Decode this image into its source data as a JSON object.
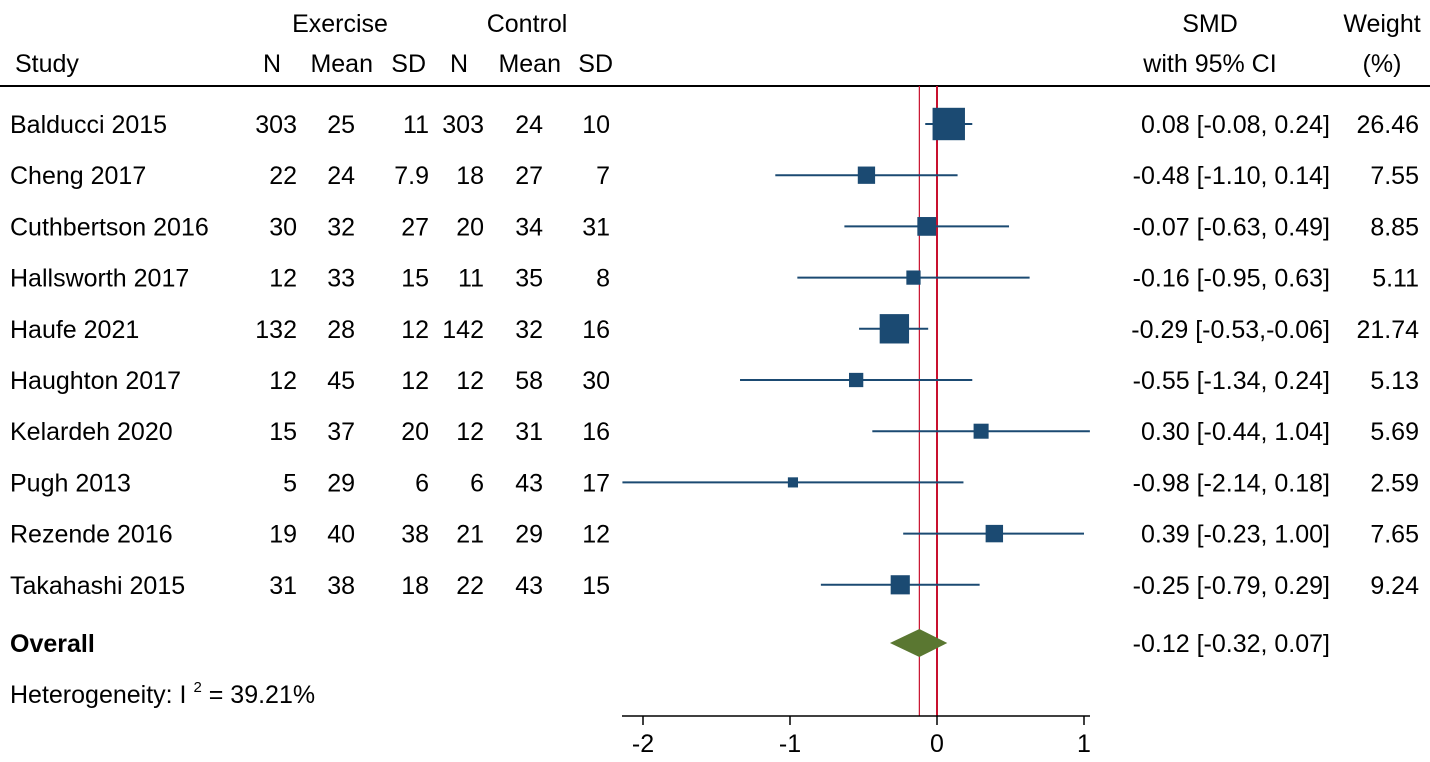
{
  "chart_data": {
    "type": "forest",
    "header": {
      "group1": "Exercise",
      "group2": "Control",
      "study": "Study",
      "n": "N",
      "mean": "Mean",
      "sd": "SD",
      "smd_line1": "SMD",
      "smd_line2": "with 95% CI",
      "weight_line1": "Weight",
      "weight_line2": "(%)"
    },
    "studies": [
      {
        "label": "Balducci 2015",
        "ex_n": "303",
        "ex_mean": "25",
        "ex_sd": "11",
        "ct_n": "303",
        "ct_mean": "24",
        "ct_sd": "10",
        "smd": 0.08,
        "lo": -0.08,
        "hi": 0.24,
        "ci_text": "0.08 [-0.08,  0.24]",
        "weight": 26.46,
        "weight_text": "26.46"
      },
      {
        "label": "Cheng 2017",
        "ex_n": "22",
        "ex_mean": "24",
        "ex_sd": "7.9",
        "ct_n": "18",
        "ct_mean": "27",
        "ct_sd": "7",
        "smd": -0.48,
        "lo": -1.1,
        "hi": 0.14,
        "ci_text": "-0.48 [-1.10,  0.14]",
        "weight": 7.55,
        "weight_text": "7.55"
      },
      {
        "label": "Cuthbertson 2016",
        "ex_n": "30",
        "ex_mean": "32",
        "ex_sd": "27",
        "ct_n": "20",
        "ct_mean": "34",
        "ct_sd": "31",
        "smd": -0.07,
        "lo": -0.63,
        "hi": 0.49,
        "ci_text": "-0.07 [-0.63,  0.49]",
        "weight": 8.85,
        "weight_text": "8.85"
      },
      {
        "label": "Hallsworth 2017",
        "ex_n": "12",
        "ex_mean": "33",
        "ex_sd": "15",
        "ct_n": "11",
        "ct_mean": "35",
        "ct_sd": "8",
        "smd": -0.16,
        "lo": -0.95,
        "hi": 0.63,
        "ci_text": "-0.16 [-0.95,  0.63]",
        "weight": 5.11,
        "weight_text": "5.11"
      },
      {
        "label": "Haufe 2021",
        "ex_n": "132",
        "ex_mean": "28",
        "ex_sd": "12",
        "ct_n": "142",
        "ct_mean": "32",
        "ct_sd": "16",
        "smd": -0.29,
        "lo": -0.53,
        "hi": -0.06,
        "ci_text": "-0.29 [-0.53,-0.06]",
        "weight": 21.74,
        "weight_text": "21.74"
      },
      {
        "label": "Haughton 2017",
        "ex_n": "12",
        "ex_mean": "45",
        "ex_sd": "12",
        "ct_n": "12",
        "ct_mean": "58",
        "ct_sd": "30",
        "smd": -0.55,
        "lo": -1.34,
        "hi": 0.24,
        "ci_text": "-0.55 [-1.34,  0.24]",
        "weight": 5.13,
        "weight_text": "5.13"
      },
      {
        "label": "Kelardeh 2020",
        "ex_n": "15",
        "ex_mean": "37",
        "ex_sd": "20",
        "ct_n": "12",
        "ct_mean": "31",
        "ct_sd": "16",
        "smd": 0.3,
        "lo": -0.44,
        "hi": 1.04,
        "ci_text": "0.30 [-0.44,  1.04]",
        "weight": 5.69,
        "weight_text": "5.69"
      },
      {
        "label": "Pugh 2013",
        "ex_n": "5",
        "ex_mean": "29",
        "ex_sd": "6",
        "ct_n": "6",
        "ct_mean": "43",
        "ct_sd": "17",
        "smd": -0.98,
        "lo": -2.14,
        "hi": 0.18,
        "ci_text": "-0.98 [-2.14,  0.18]",
        "weight": 2.59,
        "weight_text": "2.59"
      },
      {
        "label": "Rezende 2016",
        "ex_n": "19",
        "ex_mean": "40",
        "ex_sd": "38",
        "ct_n": "21",
        "ct_mean": "29",
        "ct_sd": "12",
        "smd": 0.39,
        "lo": -0.23,
        "hi": 1.0,
        "ci_text": "0.39 [-0.23,  1.00]",
        "weight": 7.65,
        "weight_text": "7.65"
      },
      {
        "label": "Takahashi 2015",
        "ex_n": "31",
        "ex_mean": "38",
        "ex_sd": "18",
        "ct_n": "22",
        "ct_mean": "43",
        "ct_sd": "15",
        "smd": -0.25,
        "lo": -0.79,
        "hi": 0.29,
        "ci_text": "-0.25 [-0.79,  0.29]",
        "weight": 9.24,
        "weight_text": "9.24"
      }
    ],
    "overall": {
      "label": "Overall",
      "smd": -0.12,
      "lo": -0.32,
      "hi": 0.07,
      "ci_text": "-0.12 [-0.32,  0.07]"
    },
    "heterogeneity": {
      "prefix": "Heterogeneity: I",
      "superscript": "2",
      "suffix": " = 39.21%"
    },
    "x_ticks": [
      -2,
      -1,
      0,
      1
    ],
    "x_tick_labels": [
      "-2",
      "-1",
      "0",
      "1"
    ],
    "null_line": 0,
    "colors": {
      "marker": "#1b4a72",
      "diamond": "#5a7731",
      "null_line": "#c8102e",
      "overall_line": "#c8102e"
    }
  }
}
